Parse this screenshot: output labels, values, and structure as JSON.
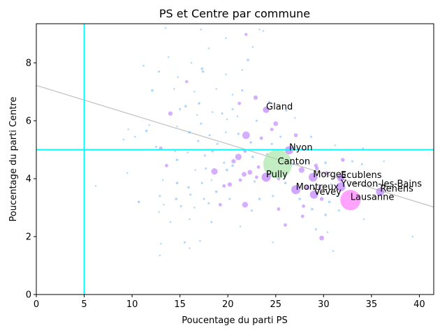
{
  "chart_data": {
    "type": "scatter",
    "title": "PS et Centre par commune",
    "xlabel": "Poucentage du parti PS",
    "ylabel": "Poucentage du parti Centre",
    "xlim": [
      0,
      41.5
    ],
    "ylim": [
      0,
      9.35
    ],
    "x_ticks": [
      0,
      5,
      10,
      15,
      20,
      25,
      30,
      35,
      40
    ],
    "y_ticks": [
      0,
      2,
      4,
      6,
      8
    ],
    "grid": false,
    "colors": {
      "small": "#66b3ff",
      "medium": "#b26bff",
      "large": "#ff66ff",
      "canton": "#9be39b",
      "reference_lines": "#00ffff",
      "trend": "#c0c0c0",
      "canton_label": "#008000"
    },
    "reference_lines": {
      "x": 5,
      "y": 5
    },
    "trend_line": {
      "x": [
        0,
        41.5
      ],
      "y": [
        7.22,
        3.02
      ]
    },
    "labeled_points": [
      {
        "label": "Gland",
        "x": 24.0,
        "y": 6.38,
        "size": 55,
        "color": "medium"
      },
      {
        "label": "Nyon",
        "x": 26.4,
        "y": 4.98,
        "size": 90,
        "color": "medium"
      },
      {
        "label": "Canton",
        "x": 25.2,
        "y": 4.5,
        "size": 1100,
        "color": "canton"
      },
      {
        "label": "Pully",
        "x": 24.0,
        "y": 4.05,
        "size": 110,
        "color": "medium"
      },
      {
        "label": "Morges",
        "x": 28.9,
        "y": 4.05,
        "size": 100,
        "color": "medium"
      },
      {
        "label": "Ecublens",
        "x": 31.8,
        "y": 4.02,
        "size": 70,
        "color": "medium"
      },
      {
        "label": "Yverdon-les-Bains",
        "x": 31.8,
        "y": 3.72,
        "size": 110,
        "color": "medium"
      },
      {
        "label": "Montreux",
        "x": 27.1,
        "y": 3.62,
        "size": 110,
        "color": "medium"
      },
      {
        "label": "Vevey",
        "x": 29.0,
        "y": 3.45,
        "size": 90,
        "color": "medium"
      },
      {
        "label": "Renens",
        "x": 35.9,
        "y": 3.55,
        "size": 90,
        "color": "medium"
      },
      {
        "label": "Lausanne",
        "x": 32.8,
        "y": 3.26,
        "size": 550,
        "color": "large"
      }
    ],
    "points": [
      [
        13.5,
        9.2,
        4
      ],
      [
        17.2,
        9.15,
        4
      ],
      [
        23.3,
        9.15,
        4
      ],
      [
        21.9,
        8.98,
        12
      ],
      [
        19.8,
        8.85,
        4
      ],
      [
        22.6,
        8.55,
        4
      ],
      [
        18.0,
        8.5,
        4
      ],
      [
        11.2,
        7.9,
        4
      ],
      [
        16.2,
        8.0,
        4
      ],
      [
        22.1,
        8.1,
        8
      ],
      [
        21.5,
        7.75,
        4
      ],
      [
        12.8,
        7.7,
        6
      ],
      [
        14.8,
        7.5,
        4
      ],
      [
        15.7,
        7.35,
        12
      ],
      [
        17.3,
        7.8,
        8
      ],
      [
        17.4,
        7.7,
        8
      ],
      [
        19.8,
        7.6,
        4
      ],
      [
        12.1,
        7.05,
        8
      ],
      [
        14.4,
        7.1,
        4
      ],
      [
        16.5,
        7.0,
        4
      ],
      [
        18.8,
        7.1,
        4
      ],
      [
        20.5,
        6.9,
        4
      ],
      [
        21.5,
        7.05,
        6
      ],
      [
        15.6,
        6.5,
        8
      ],
      [
        17.0,
        6.6,
        8
      ],
      [
        21.2,
        6.6,
        15
      ],
      [
        22.9,
        6.8,
        25
      ],
      [
        20.5,
        6.4,
        6
      ],
      [
        14.0,
        6.25,
        25
      ],
      [
        15.0,
        6.4,
        6
      ],
      [
        16.8,
        6.2,
        4
      ],
      [
        18.4,
        6.3,
        4
      ],
      [
        19.4,
        6.25,
        6
      ],
      [
        21.0,
        6.15,
        4
      ],
      [
        23.0,
        6.0,
        6
      ],
      [
        24.6,
        5.7,
        15
      ],
      [
        25.0,
        5.9,
        30
      ],
      [
        11.5,
        5.65,
        8
      ],
      [
        14.7,
        5.8,
        4
      ],
      [
        16.0,
        5.6,
        8
      ],
      [
        17.2,
        5.9,
        6
      ],
      [
        18.1,
        5.5,
        6
      ],
      [
        19.8,
        5.6,
        4
      ],
      [
        21.1,
        5.55,
        6
      ],
      [
        21.9,
        5.5,
        75
      ],
      [
        23.5,
        5.4,
        15
      ],
      [
        24.6,
        5.2,
        6
      ],
      [
        25.5,
        5.45,
        6
      ],
      [
        27.1,
        5.5,
        20
      ],
      [
        28.7,
        5.45,
        6
      ],
      [
        12.5,
        5.1,
        6
      ],
      [
        13.0,
        5.05,
        15
      ],
      [
        14.5,
        4.95,
        4
      ],
      [
        15.8,
        4.9,
        4
      ],
      [
        17.6,
        4.8,
        6
      ],
      [
        18.4,
        4.95,
        8
      ],
      [
        19.6,
        4.55,
        6
      ],
      [
        20.6,
        4.6,
        25
      ],
      [
        21.1,
        4.75,
        55
      ],
      [
        21.8,
        4.95,
        15
      ],
      [
        22.6,
        4.75,
        8
      ],
      [
        23.2,
        4.4,
        15
      ],
      [
        24.1,
        4.85,
        6
      ],
      [
        25.7,
        4.7,
        8
      ],
      [
        26.8,
        4.5,
        6
      ],
      [
        28.1,
        4.6,
        8
      ],
      [
        29.2,
        4.45,
        20
      ],
      [
        30.2,
        4.55,
        8
      ],
      [
        32.0,
        4.65,
        20
      ],
      [
        33.0,
        4.6,
        6
      ],
      [
        34.0,
        4.5,
        6
      ],
      [
        13.6,
        4.45,
        15
      ],
      [
        14.7,
        4.65,
        8
      ],
      [
        16.6,
        4.3,
        4
      ],
      [
        17.7,
        4.35,
        6
      ],
      [
        18.6,
        4.25,
        55
      ],
      [
        19.9,
        4.3,
        8
      ],
      [
        20.5,
        4.45,
        8
      ],
      [
        21.7,
        4.15,
        30
      ],
      [
        22.3,
        4.22,
        30
      ],
      [
        23.0,
        4.05,
        15
      ],
      [
        25.3,
        4.0,
        15
      ],
      [
        27.7,
        4.3,
        45
      ],
      [
        29.3,
        4.35,
        20
      ],
      [
        30.3,
        4.2,
        15
      ],
      [
        13.2,
        3.95,
        4
      ],
      [
        14.7,
        3.85,
        8
      ],
      [
        15.9,
        3.7,
        8
      ],
      [
        17.3,
        3.85,
        6
      ],
      [
        18.3,
        3.95,
        4
      ],
      [
        19.6,
        3.75,
        15
      ],
      [
        20.2,
        3.8,
        25
      ],
      [
        21.3,
        3.95,
        15
      ],
      [
        22.8,
        3.9,
        6
      ],
      [
        26.0,
        3.85,
        8
      ],
      [
        28.3,
        3.7,
        30
      ],
      [
        29.6,
        3.7,
        15
      ],
      [
        30.8,
        3.8,
        6
      ],
      [
        33.3,
        3.9,
        6
      ],
      [
        12.9,
        3.4,
        6
      ],
      [
        14.6,
        3.3,
        8
      ],
      [
        16.1,
        3.45,
        6
      ],
      [
        17.5,
        3.3,
        6
      ],
      [
        18.8,
        3.55,
        8
      ],
      [
        20.2,
        3.3,
        6
      ],
      [
        21.8,
        3.1,
        45
      ],
      [
        23.3,
        3.3,
        8
      ],
      [
        24.7,
        3.4,
        6
      ],
      [
        27.5,
        3.3,
        8
      ],
      [
        29.8,
        3.3,
        20
      ],
      [
        30.6,
        3.2,
        8
      ],
      [
        31.4,
        3.4,
        6
      ],
      [
        13.3,
        3.1,
        4
      ],
      [
        15.1,
        3.05,
        6
      ],
      [
        16.5,
        3.0,
        4
      ],
      [
        18.0,
        3.15,
        6
      ],
      [
        19.2,
        3.1,
        15
      ],
      [
        22.5,
        2.9,
        6
      ],
      [
        25.3,
        2.95,
        15
      ],
      [
        27.9,
        3.05,
        15
      ],
      [
        28.8,
        2.95,
        8
      ],
      [
        30.2,
        2.75,
        8
      ],
      [
        31.6,
        2.9,
        6
      ],
      [
        34.2,
        2.6,
        4
      ],
      [
        12.8,
        2.85,
        4
      ],
      [
        14.0,
        2.5,
        4
      ],
      [
        16.0,
        2.6,
        4
      ],
      [
        18.3,
        2.5,
        6
      ],
      [
        21.3,
        2.35,
        4
      ],
      [
        26.0,
        2.4,
        15
      ],
      [
        27.8,
        2.7,
        15
      ],
      [
        29.2,
        2.25,
        6
      ],
      [
        30.4,
        2.15,
        4
      ],
      [
        29.8,
        1.95,
        30
      ],
      [
        13.0,
        1.75,
        4
      ],
      [
        15.5,
        1.8,
        6
      ],
      [
        17.1,
        1.85,
        4
      ],
      [
        24.7,
        1.8,
        4
      ],
      [
        31.0,
        1.5,
        4
      ],
      [
        39.3,
        2.0,
        4
      ],
      [
        12.9,
        1.35,
        4
      ],
      [
        16.0,
        1.6,
        4
      ],
      [
        6.2,
        3.75,
        4
      ],
      [
        9.1,
        5.35,
        4
      ],
      [
        10.7,
        3.2,
        8
      ],
      [
        10.3,
        5.45,
        4
      ],
      [
        9.5,
        4.2,
        4
      ],
      [
        36.3,
        4.6,
        4
      ],
      [
        35.6,
        3.75,
        4
      ],
      [
        36.0,
        3.45,
        6
      ],
      [
        24.3,
        6.65,
        6
      ],
      [
        26.1,
        6.35,
        6
      ],
      [
        27.0,
        6.1,
        4
      ],
      [
        13.8,
        8.2,
        4
      ],
      [
        19.9,
        6.05,
        4
      ],
      [
        23.7,
        9.1,
        4
      ],
      [
        9.6,
        5.7,
        4
      ],
      [
        11.8,
        5.85,
        4
      ],
      [
        16.9,
        5.3,
        6
      ],
      [
        18.9,
        5.2,
        6
      ],
      [
        22.4,
        5.25,
        8
      ],
      [
        26.9,
        5.1,
        6
      ],
      [
        34.1,
        5.05,
        4
      ],
      [
        31.2,
        5.15,
        4
      ]
    ]
  }
}
